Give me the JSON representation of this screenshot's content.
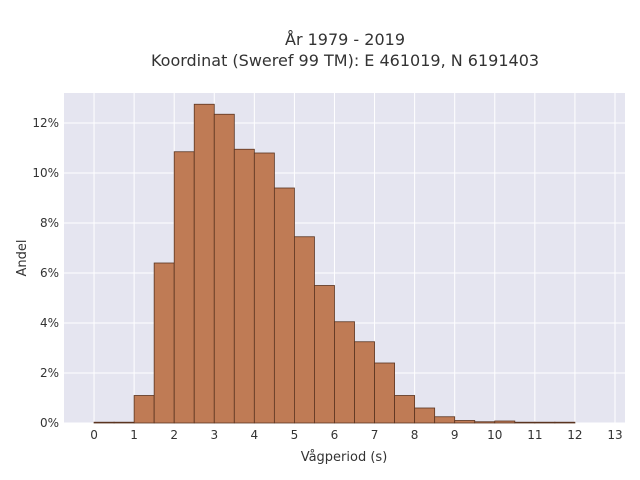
{
  "chart_data": {
    "type": "bar",
    "title_line1": "År 1979 - 2019",
    "title_line2": "Koordinat (Sweref 99 TM): E 461019, N 6191403",
    "xlabel": "Vågperiod (s)",
    "ylabel": "Andel",
    "xlim": [
      -0.75,
      13.25
    ],
    "ylim": [
      0,
      13.2
    ],
    "x_ticks": [
      "0",
      "1",
      "2",
      "3",
      "4",
      "5",
      "6",
      "7",
      "8",
      "9",
      "10",
      "11",
      "12",
      "13"
    ],
    "x_tick_values": [
      0,
      1,
      2,
      3,
      4,
      5,
      6,
      7,
      8,
      9,
      10,
      11,
      12,
      13
    ],
    "y_ticks": [
      "0%",
      "2%",
      "4%",
      "6%",
      "8%",
      "10%",
      "12%"
    ],
    "y_tick_values": [
      0,
      2,
      4,
      6,
      8,
      10,
      12
    ],
    "bin_width": 0.5,
    "bins": [
      {
        "x0": 0.0,
        "value": 0.02
      },
      {
        "x0": 0.5,
        "value": 0.0
      },
      {
        "x0": 1.0,
        "value": 1.1
      },
      {
        "x0": 1.5,
        "value": 6.4
      },
      {
        "x0": 2.0,
        "value": 10.85
      },
      {
        "x0": 2.5,
        "value": 12.75
      },
      {
        "x0": 3.0,
        "value": 12.35
      },
      {
        "x0": 3.5,
        "value": 10.95
      },
      {
        "x0": 4.0,
        "value": 10.8
      },
      {
        "x0": 4.5,
        "value": 9.4
      },
      {
        "x0": 5.0,
        "value": 7.45
      },
      {
        "x0": 5.5,
        "value": 5.5
      },
      {
        "x0": 6.0,
        "value": 4.05
      },
      {
        "x0": 6.5,
        "value": 3.25
      },
      {
        "x0": 7.0,
        "value": 2.4
      },
      {
        "x0": 7.5,
        "value": 1.1
      },
      {
        "x0": 8.0,
        "value": 0.6
      },
      {
        "x0": 8.5,
        "value": 0.25
      },
      {
        "x0": 9.0,
        "value": 0.1
      },
      {
        "x0": 9.5,
        "value": 0.05
      },
      {
        "x0": 10.0,
        "value": 0.08
      },
      {
        "x0": 10.5,
        "value": 0.02
      },
      {
        "x0": 11.0,
        "value": 0.02
      },
      {
        "x0": 11.5,
        "value": 0.02
      }
    ],
    "grid": true,
    "colors": {
      "bar_fill": "#bf7b55",
      "bar_stroke": "#5a3420",
      "plot_background": "#e5e5f0",
      "grid": "#ffffff"
    }
  }
}
